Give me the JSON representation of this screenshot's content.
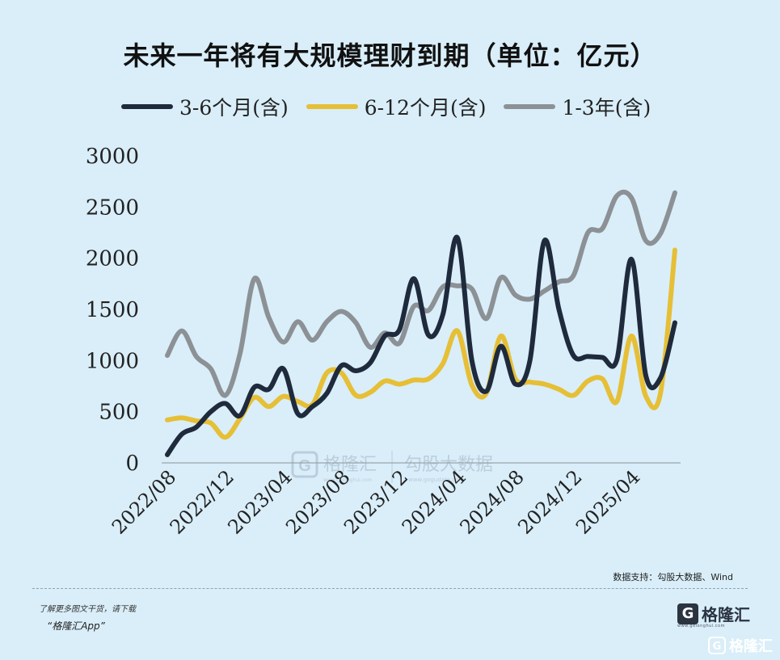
{
  "title": "未来一年将有大规模理财到期（单位：亿元）",
  "legend": [
    {
      "label": "3-6个月(含)",
      "color": "#1f2a3c"
    },
    {
      "label": "6-12个月(含)",
      "color": "#e6bf36"
    },
    {
      "label": "1-3年(含)",
      "color": "#8c9196"
    }
  ],
  "watermark": {
    "brand": "格隆汇",
    "brand_url": "www.gelonghui.com",
    "product": "勾股大数据",
    "product_url": "www.gogudata.com"
  },
  "source": "数据支持：勾股大数据、Wind",
  "promo": {
    "line1": "了解更多图文干货，请下载",
    "line2": "“格隆汇App”"
  },
  "brand": {
    "icon": "G",
    "name": "格隆汇",
    "url": "www.gelonghui.com"
  },
  "corner_mark": {
    "icon": "G",
    "name": "格隆汇"
  },
  "chart_data": {
    "type": "line",
    "title": "未来一年将有大规模理财到期（单位：亿元）",
    "x": [
      "2022/08",
      "2022/09",
      "2022/10",
      "2022/11",
      "2022/12",
      "2023/01",
      "2023/02",
      "2023/03",
      "2023/04",
      "2023/05",
      "2023/06",
      "2023/07",
      "2023/08",
      "2023/09",
      "2023/10",
      "2023/11",
      "2023/12",
      "2024/01",
      "2024/02",
      "2024/03",
      "2024/04",
      "2024/05",
      "2024/06",
      "2024/07",
      "2024/08",
      "2024/09",
      "2024/10",
      "2024/11",
      "2024/12",
      "2025/01",
      "2025/02",
      "2025/03",
      "2025/04",
      "2025/05",
      "2025/06",
      "2025/07"
    ],
    "x_tick_labels": [
      "2022/08",
      "2022/12",
      "2023/04",
      "2023/08",
      "2023/12",
      "2024/04",
      "2024/08",
      "2024/12",
      "2025/04"
    ],
    "ylim": [
      0,
      3000
    ],
    "y_ticks": [
      0,
      500,
      1000,
      1500,
      2000,
      2500,
      3000
    ],
    "grid": false,
    "legend_position": "top",
    "series": [
      {
        "name": "3-6个月(含)",
        "color": "#1f2a3c",
        "values": [
          80,
          280,
          350,
          500,
          580,
          460,
          740,
          720,
          920,
          480,
          550,
          680,
          950,
          900,
          980,
          1240,
          1300,
          1800,
          1250,
          1450,
          2200,
          1000,
          700,
          1140,
          770,
          1000,
          2170,
          1500,
          1050,
          1040,
          1030,
          1010,
          1990,
          850,
          830,
          1370
        ]
      },
      {
        "name": "6-12个月(含)",
        "color": "#e6bf36",
        "values": [
          420,
          440,
          410,
          390,
          250,
          430,
          640,
          550,
          650,
          600,
          570,
          880,
          880,
          660,
          690,
          800,
          770,
          810,
          820,
          970,
          1290,
          760,
          680,
          1240,
          820,
          790,
          770,
          720,
          660,
          800,
          820,
          600,
          1240,
          650,
          680,
          2080
        ]
      },
      {
        "name": "1-3年(含)",
        "color": "#8c9196",
        "values": [
          1050,
          1290,
          1040,
          920,
          660,
          1060,
          1800,
          1420,
          1180,
          1380,
          1200,
          1380,
          1480,
          1370,
          1130,
          1270,
          1170,
          1530,
          1490,
          1720,
          1730,
          1700,
          1410,
          1810,
          1640,
          1600,
          1680,
          1770,
          1830,
          2250,
          2290,
          2610,
          2590,
          2170,
          2240,
          2640
        ]
      }
    ]
  }
}
